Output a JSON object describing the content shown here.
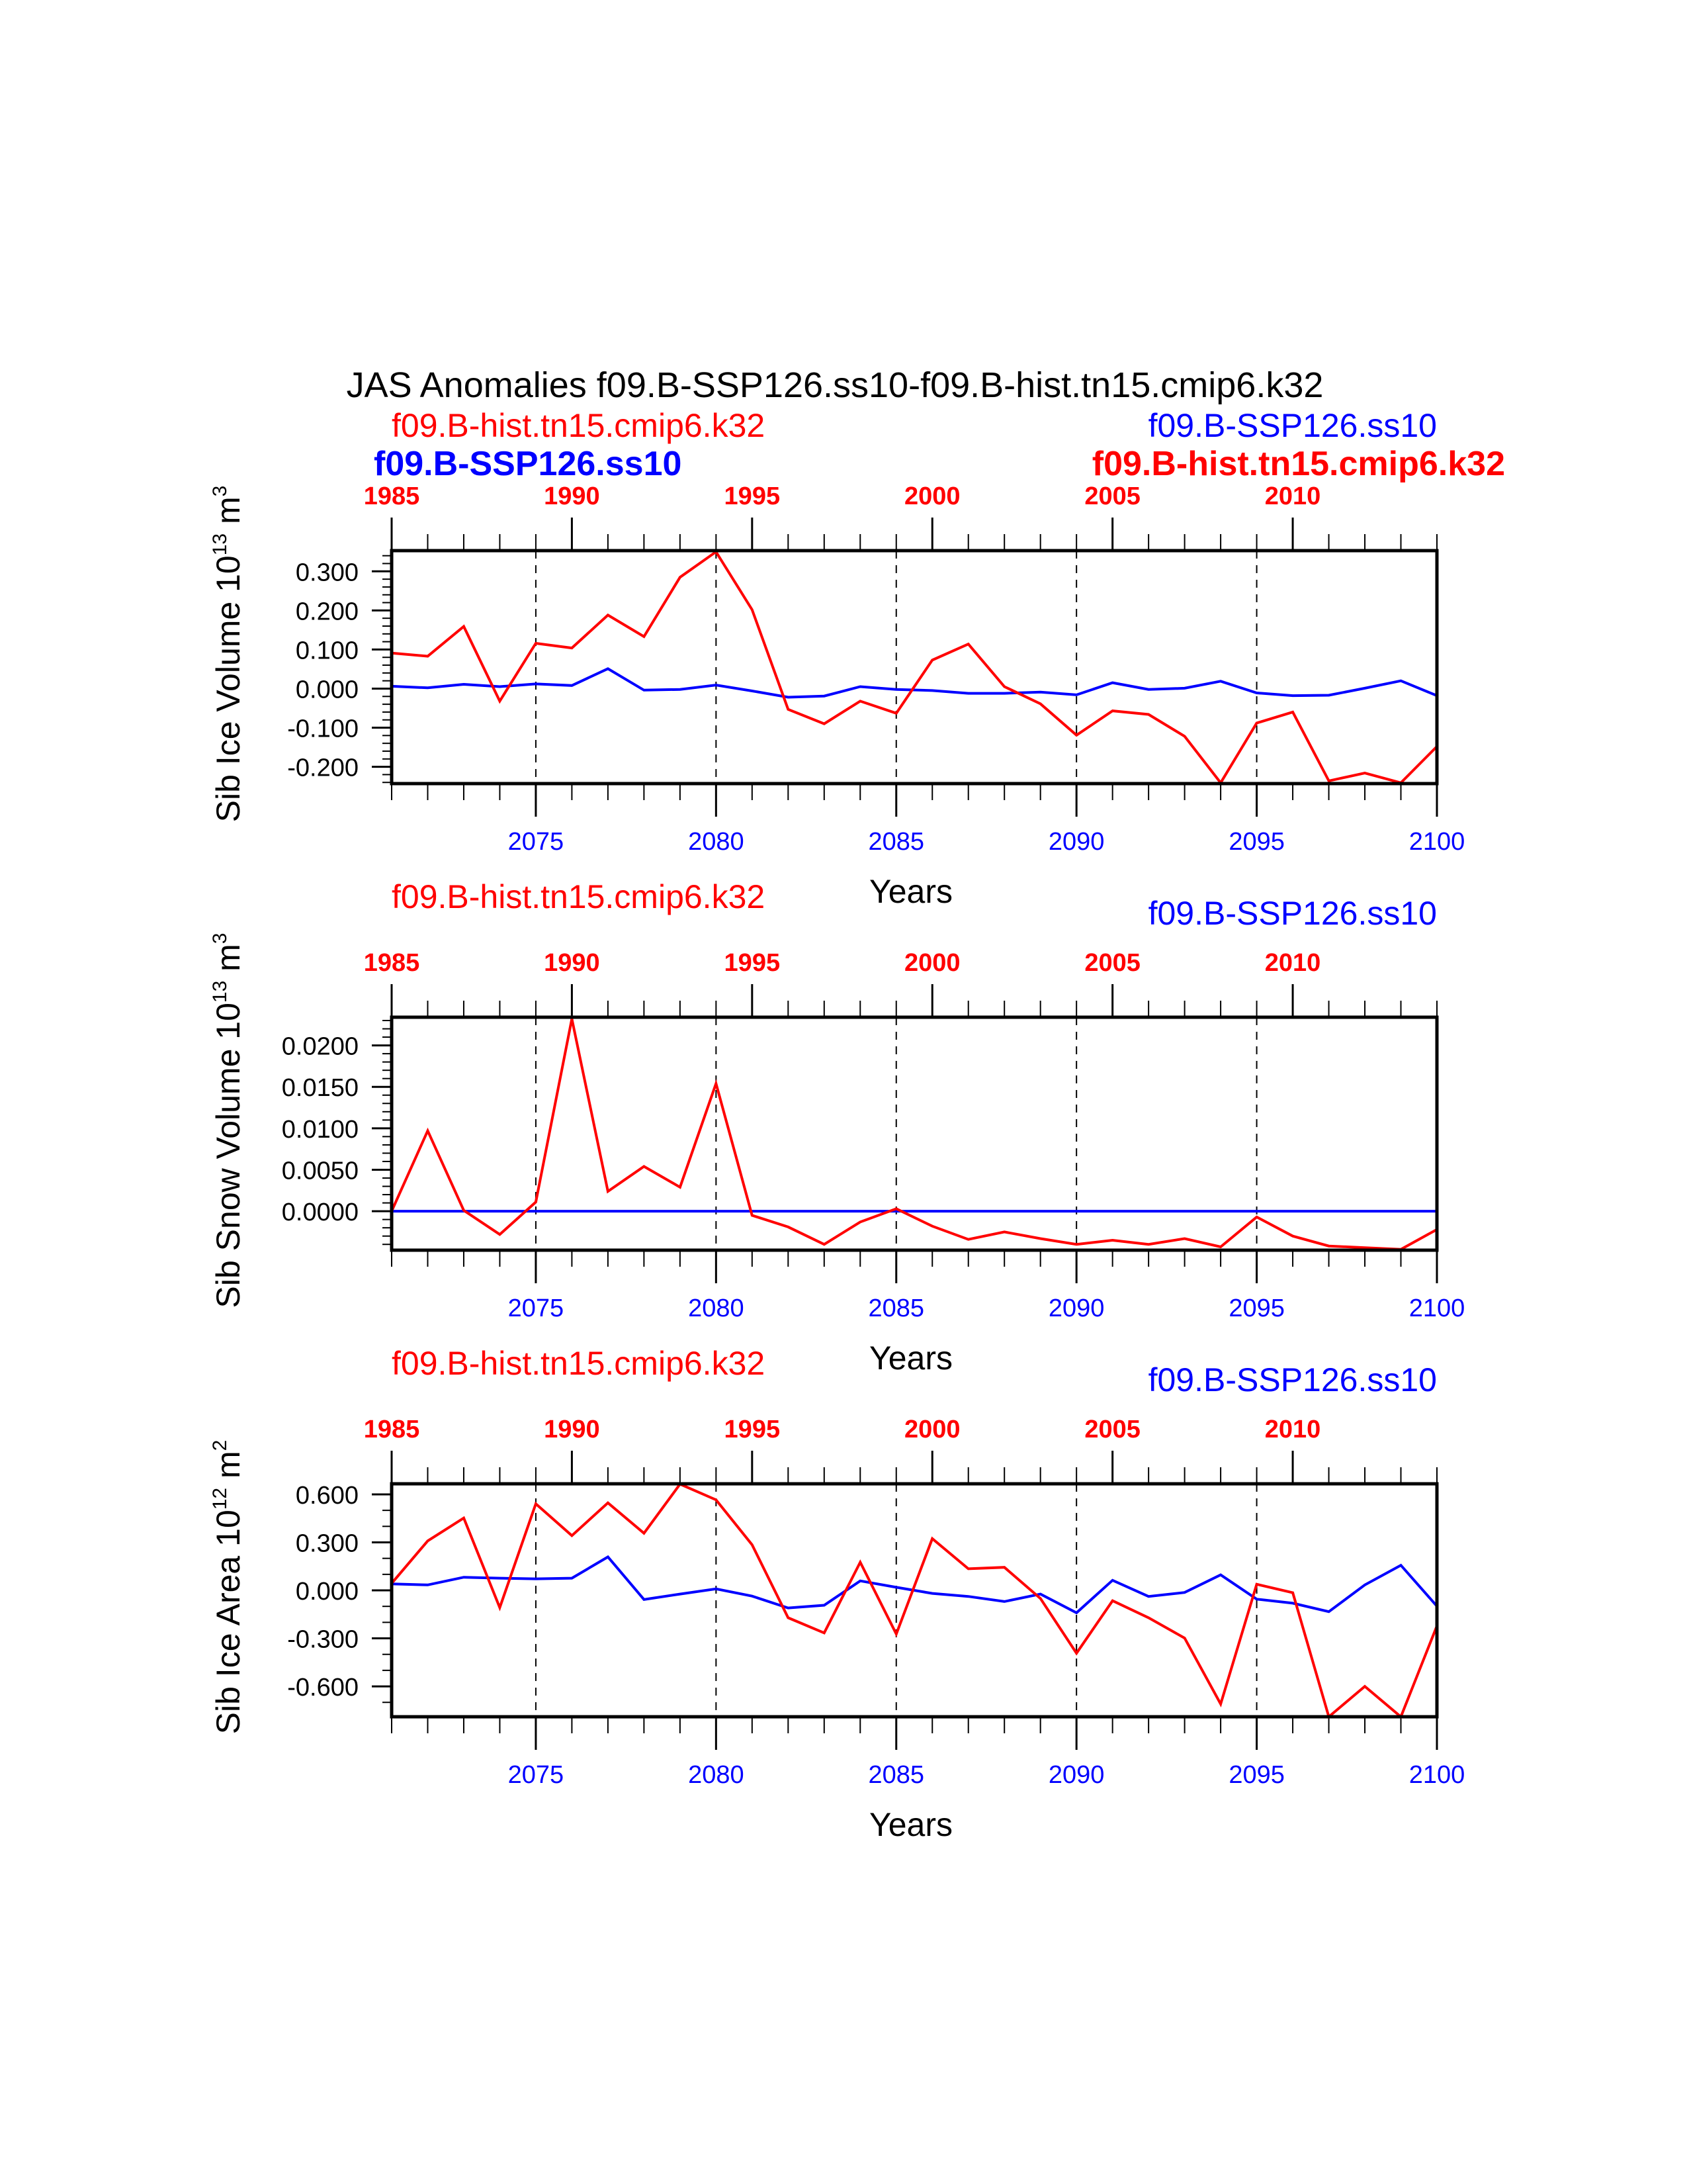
{
  "title": "JAS Anomalies f09.B-SSP126.ss10-f09.B-hist.tn15.cmip6.k32",
  "colors": {
    "hist": "#FF0000",
    "ssp": "#0000FF",
    "axis": "#000000"
  },
  "chart_data": [
    {
      "type": "line",
      "ylabel": {
        "main": "Sib Ice Volume 10",
        "exp": "13",
        "unit": " m",
        "unit_exp": "3"
      },
      "xlabel": "Years",
      "legend_hist": "f09.B-hist.tn15.cmip6.k32",
      "legend_ssp": "f09.B-SSP126.ss10",
      "overlay_bold": {
        "left_ssp": "f09.B-SSP126.ss10",
        "right_hist": "f09.B-hist.tn15.cmip6.k32"
      },
      "ylim": [
        -0.243,
        0.353
      ],
      "yticks": [
        -0.2,
        -0.1,
        0.0,
        0.1,
        0.2,
        0.3
      ],
      "ytick_labels": [
        "-0.200",
        "-0.100",
        "0.000",
        "0.100",
        "0.200",
        "0.300"
      ],
      "yminor_step": 0.02,
      "x": [
        2071,
        2072,
        2073,
        2074,
        2075,
        2076,
        2077,
        2078,
        2079,
        2080,
        2081,
        2082,
        2083,
        2084,
        2085,
        2086,
        2087,
        2088,
        2089,
        2090,
        2091,
        2092,
        2093,
        2094,
        2095,
        2096,
        2097,
        2098,
        2099,
        2100
      ],
      "series": [
        {
          "name": "f09.B-hist.tn15.cmip6.k32",
          "color": "#FF0000",
          "values": [
            0.091,
            0.083,
            0.159,
            -0.032,
            0.116,
            0.104,
            0.188,
            0.133,
            0.285,
            0.35,
            0.202,
            -0.053,
            -0.09,
            -0.032,
            -0.063,
            0.073,
            0.114,
            0.005,
            -0.039,
            -0.119,
            -0.057,
            -0.066,
            -0.122,
            -0.241,
            -0.088,
            -0.06,
            -0.236,
            -0.216,
            -0.241,
            -0.148
          ]
        },
        {
          "name": "f09.B-SSP126.ss10",
          "color": "#0000FF",
          "values": [
            0.006,
            0.002,
            0.011,
            0.005,
            0.012,
            0.008,
            0.051,
            -0.004,
            -0.002,
            0.009,
            -0.006,
            -0.022,
            -0.019,
            0.005,
            -0.002,
            -0.005,
            -0.012,
            -0.012,
            -0.009,
            -0.016,
            0.015,
            -0.002,
            0.001,
            0.019,
            -0.011,
            -0.018,
            -0.017,
            0.001,
            0.02,
            -0.018
          ]
        }
      ]
    },
    {
      "type": "line",
      "ylabel": {
        "main": "Sib Snow Volume 10",
        "exp": "13",
        "unit": " m",
        "unit_exp": "3"
      },
      "xlabel": "Years",
      "legend_hist": "f09.B-hist.tn15.cmip6.k32",
      "legend_ssp": "f09.B-SSP126.ss10",
      "ylim": [
        -0.0047,
        0.0234
      ],
      "yticks": [
        0.0,
        0.005,
        0.01,
        0.015,
        0.02
      ],
      "ytick_labels": [
        "0.0000",
        "0.0050",
        "0.0100",
        "0.0150",
        "0.0200"
      ],
      "yminor_step": 0.001,
      "x": [
        2071,
        2072,
        2073,
        2074,
        2075,
        2076,
        2077,
        2078,
        2079,
        2080,
        2081,
        2082,
        2083,
        2084,
        2085,
        2086,
        2087,
        2088,
        2089,
        2090,
        2091,
        2092,
        2093,
        2094,
        2095,
        2096,
        2097,
        2098,
        2099,
        2100
      ],
      "series": [
        {
          "name": "f09.B-hist.tn15.cmip6.k32",
          "color": "#FF0000",
          "values": [
            0.0,
            0.0097,
            0.0001,
            -0.0028,
            0.0011,
            0.0232,
            0.0024,
            0.0054,
            0.0029,
            0.0154,
            -0.0005,
            -0.0019,
            -0.004,
            -0.0013,
            0.0003,
            -0.0018,
            -0.0034,
            -0.0025,
            -0.0033,
            -0.004,
            -0.0035,
            -0.004,
            -0.0033,
            -0.0043,
            -0.0007,
            -0.003,
            -0.0042,
            -0.0044,
            -0.0046,
            -0.0022
          ]
        },
        {
          "name": "f09.B-SSP126.ss10",
          "color": "#0000FF",
          "values": [
            0,
            0,
            0,
            0,
            0,
            0,
            0,
            0,
            0,
            0,
            0,
            0,
            0,
            0,
            0,
            0,
            0,
            0,
            0,
            0,
            0,
            0,
            0,
            0,
            0,
            0,
            0,
            0,
            0,
            0
          ]
        }
      ]
    },
    {
      "type": "line",
      "ylabel": {
        "main": "Sib Ice Area 10",
        "exp": "12",
        "unit": " m",
        "unit_exp": "2"
      },
      "xlabel": "Years",
      "legend_hist": "f09.B-hist.tn15.cmip6.k32",
      "legend_ssp": "f09.B-SSP126.ss10",
      "ylim": [
        -0.79,
        0.666
      ],
      "yticks": [
        -0.6,
        -0.3,
        0.0,
        0.3,
        0.6
      ],
      "ytick_labels": [
        "-0.600",
        "-0.300",
        "0.000",
        "0.300",
        "0.600"
      ],
      "yminor_step": 0.1,
      "x": [
        2071,
        2072,
        2073,
        2074,
        2075,
        2076,
        2077,
        2078,
        2079,
        2080,
        2081,
        2082,
        2083,
        2084,
        2085,
        2086,
        2087,
        2088,
        2089,
        2090,
        2091,
        2092,
        2093,
        2094,
        2095,
        2096,
        2097,
        2098,
        2099,
        2100
      ],
      "series": [
        {
          "name": "f09.B-hist.tn15.cmip6.k32",
          "color": "#FF0000",
          "values": [
            0.044,
            0.309,
            0.452,
            -0.108,
            0.541,
            0.342,
            0.547,
            0.357,
            0.664,
            0.566,
            0.285,
            -0.171,
            -0.266,
            0.176,
            -0.273,
            0.323,
            0.135,
            0.144,
            -0.051,
            -0.393,
            -0.065,
            -0.171,
            -0.298,
            -0.71,
            0.038,
            -0.015,
            -0.79,
            -0.6,
            -0.79,
            -0.222
          ]
        },
        {
          "name": "f09.B-SSP126.ss10",
          "color": "#0000FF",
          "values": [
            0.04,
            0.034,
            0.082,
            0.076,
            0.072,
            0.076,
            0.209,
            -0.057,
            -0.023,
            0.009,
            -0.036,
            -0.11,
            -0.093,
            0.059,
            0.019,
            -0.019,
            -0.038,
            -0.07,
            -0.023,
            -0.14,
            0.063,
            -0.038,
            -0.013,
            0.097,
            -0.055,
            -0.08,
            -0.133,
            0.034,
            0.157,
            -0.099
          ]
        }
      ]
    }
  ],
  "top_axis": {
    "start": 1985,
    "labels": [
      "1985",
      "1990",
      "1995",
      "2000",
      "2005",
      "2010"
    ]
  },
  "bottom_axis": {
    "labels": [
      "2075",
      "2080",
      "2085",
      "2090",
      "2095",
      "2100"
    ]
  }
}
